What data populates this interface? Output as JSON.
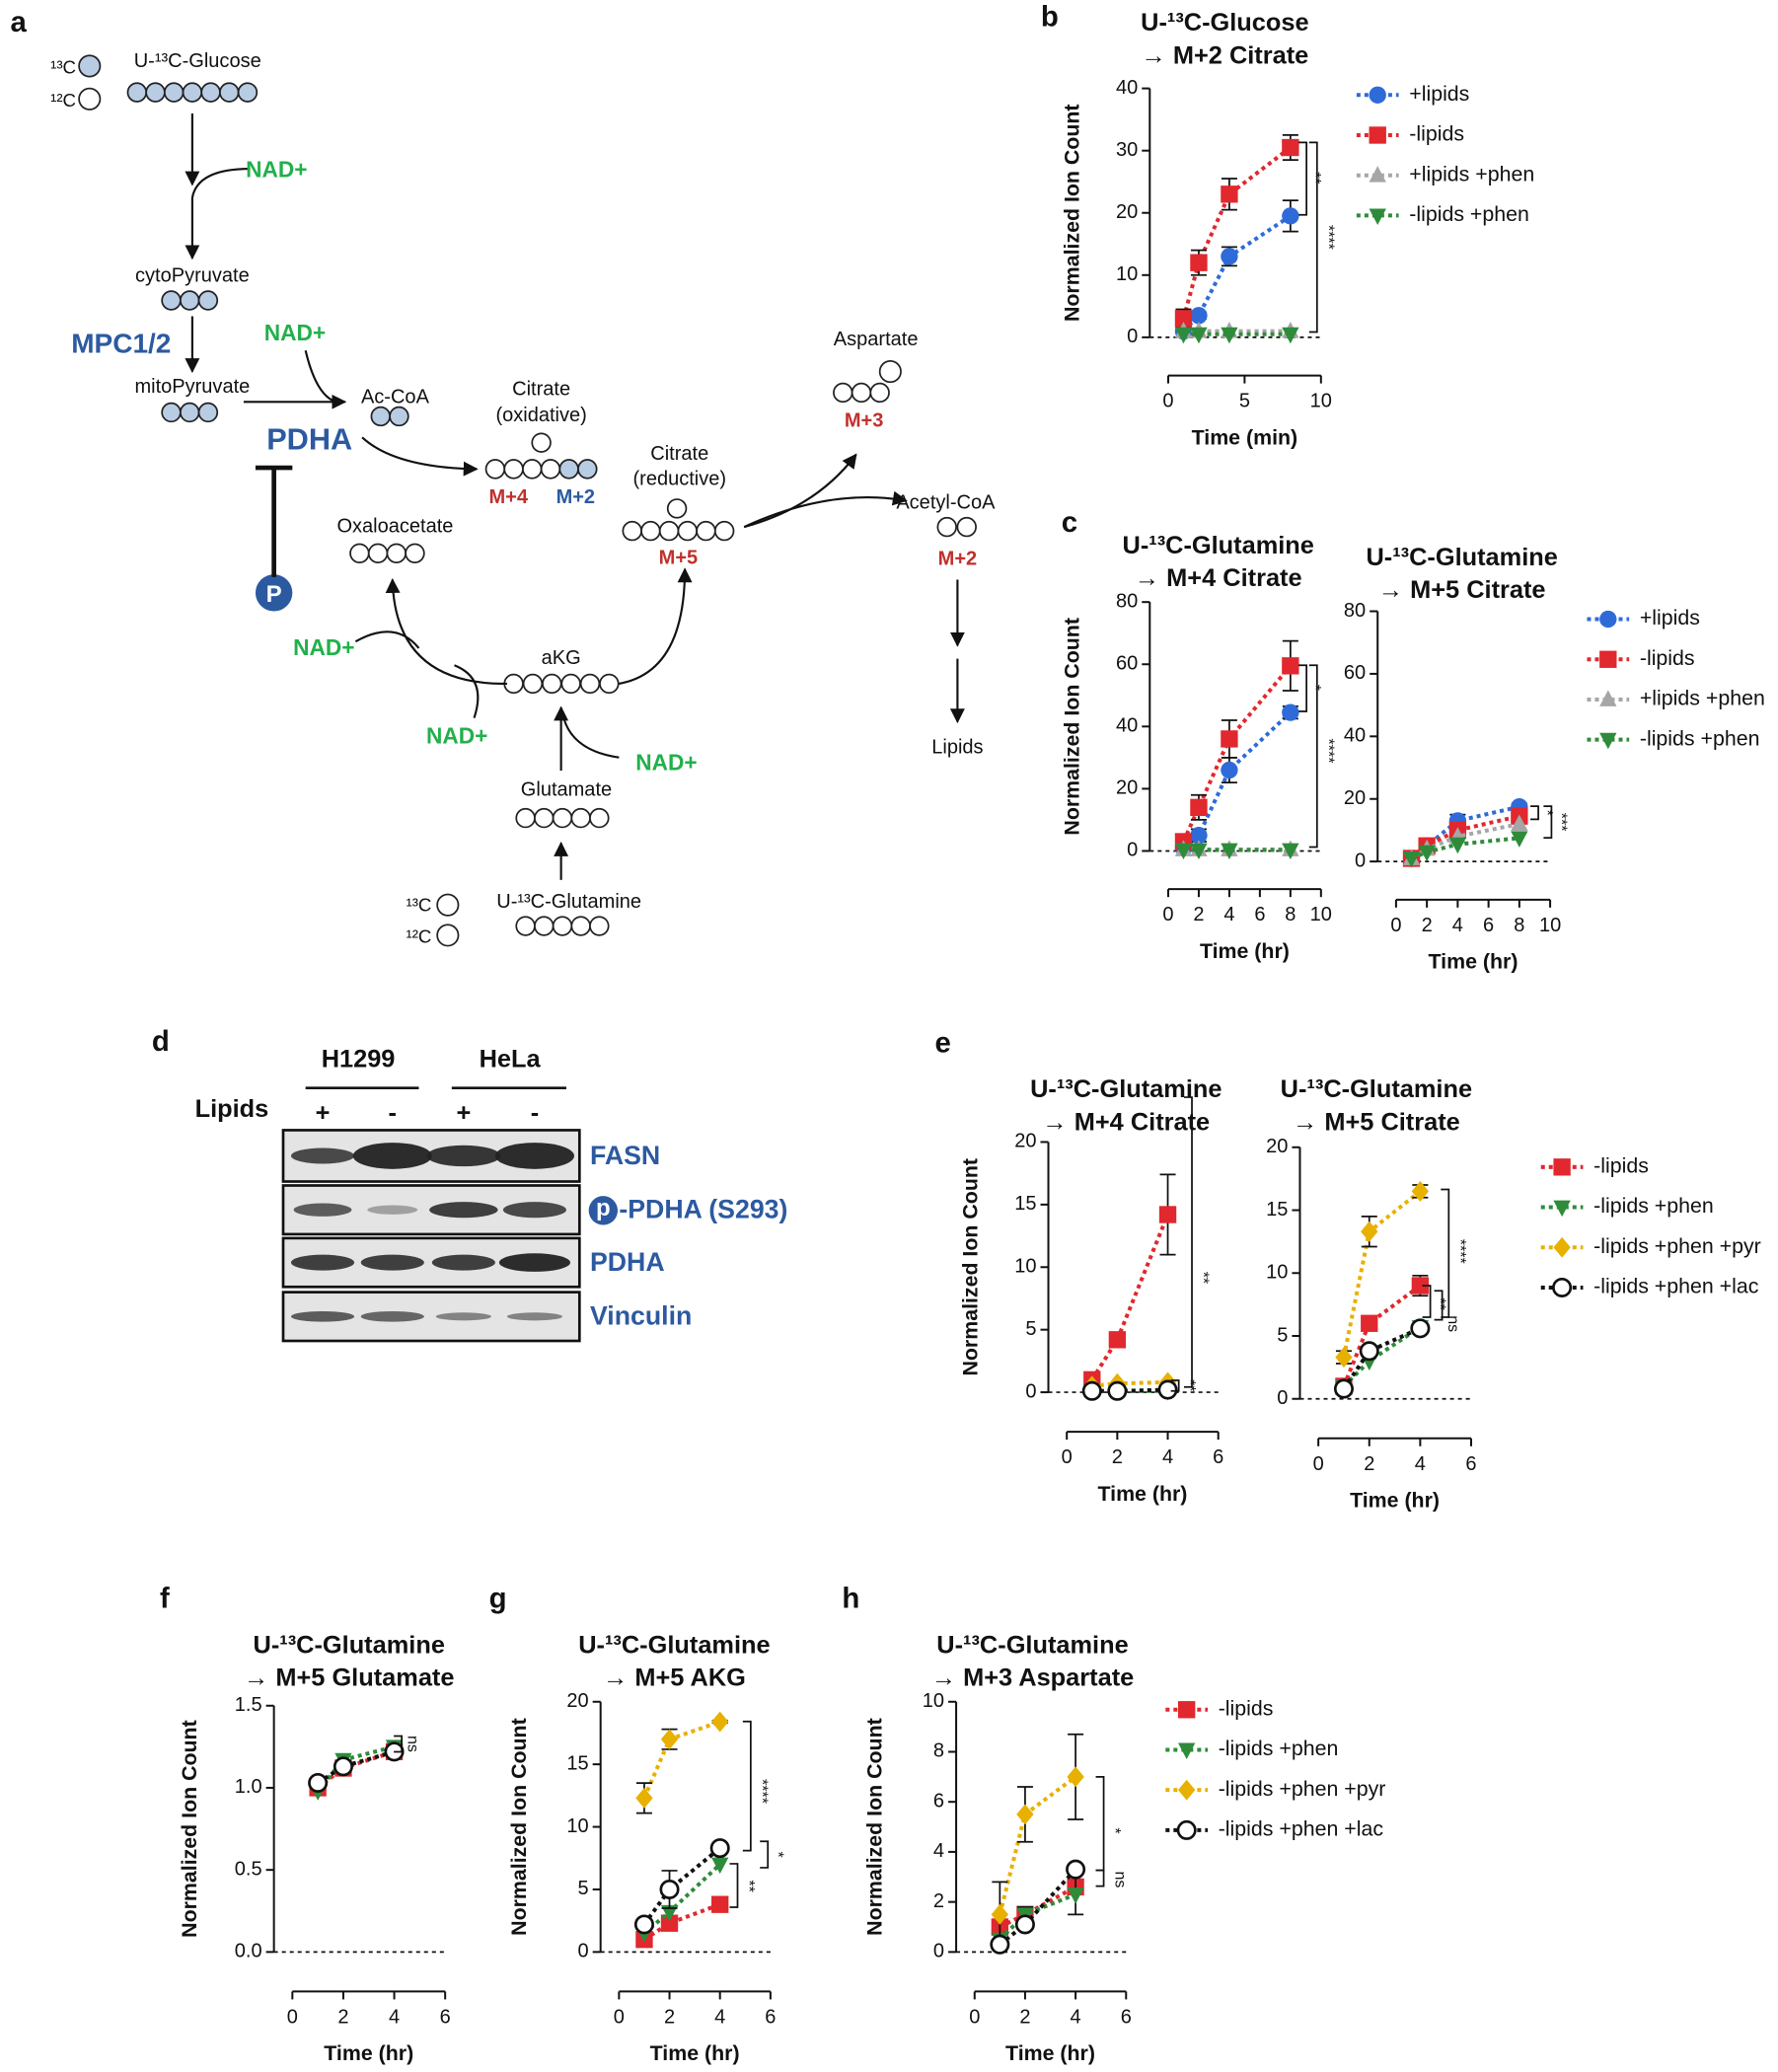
{
  "diagram": {
    "panel": "a",
    "texts": [
      "¹³C",
      "¹²C",
      "U-¹³C-Glucose",
      "NAD+",
      "cytoPyruvate",
      "MPC1/2",
      "mitoPyruvate",
      "NAD+",
      "Ac-CoA",
      "PDHA",
      "P",
      "Citrate",
      "(oxidative)",
      "M+4",
      "M+2",
      "Oxaloacetate",
      "Citrate",
      "(reductive)",
      "M+5",
      "Aspartate",
      "M+3",
      "Acetyl-CoA",
      "M+2",
      "Lipids",
      "NAD+",
      "aKG",
      "NAD+",
      "NAD+",
      "Glutamate",
      "U-¹³C-Glutamine",
      "¹³C",
      "¹²C"
    ]
  },
  "blot": {
    "panel": "d",
    "cell_lines": [
      "H1299",
      "HeLa"
    ],
    "row_label": "Lipids",
    "conditions": [
      "+",
      "-",
      "+",
      "-"
    ],
    "phospho_badge": "p",
    "proteins": [
      "FASN",
      "-PDHA (S293)",
      "PDHA",
      "Vinculin"
    ]
  },
  "chart_data": [
    {
      "type": "line",
      "panel": "b",
      "title": "U-¹³C-Glucose",
      "subtitle": "→ M+2 Citrate",
      "y_label": "Normalized Ion Count",
      "x_label": "Time (min)",
      "x": [
        1,
        2,
        4,
        8
      ],
      "xlim": [
        0,
        10
      ],
      "xticks": [
        0,
        5,
        10
      ],
      "ylim": [
        0,
        40
      ],
      "yticks": [
        0,
        10,
        20,
        30,
        40
      ],
      "legend": "right",
      "annotations": [
        "**",
        "****"
      ],
      "series": [
        {
          "name": "+lipids",
          "color": "#2f6bd8",
          "marker": "circle",
          "values": [
            1,
            3.5,
            13,
            19.5
          ],
          "errors": [
            0.5,
            0.5,
            1.5,
            2.5
          ]
        },
        {
          "name": "-lipids",
          "color": "#e0282e",
          "marker": "square",
          "values": [
            3,
            12,
            23,
            30.5
          ],
          "errors": [
            1.5,
            2,
            2.5,
            2
          ]
        },
        {
          "name": "+lipids +phen",
          "color": "#a6a6a6",
          "marker": "triangle-up",
          "values": [
            1,
            1,
            1,
            1
          ]
        },
        {
          "name": "-lipids +phen",
          "color": "#2e8b3a",
          "marker": "triangle-down",
          "values": [
            0.5,
            0.5,
            0.5,
            0.5
          ]
        }
      ]
    },
    {
      "type": "line",
      "panel": "c",
      "title": "U-¹³C-Glutamine",
      "subtitle": "→ M+4 Citrate",
      "y_label": "Normalized Ion Count",
      "x_label": "Time (hr)",
      "x": [
        1,
        2,
        4,
        8
      ],
      "xlim": [
        0,
        10
      ],
      "xticks": [
        0,
        2,
        4,
        6,
        8,
        10
      ],
      "ylim": [
        0,
        80
      ],
      "yticks": [
        0,
        20,
        40,
        60,
        80
      ],
      "annotations": [
        "*",
        "****"
      ],
      "series": [
        {
          "color": "#2f6bd8",
          "marker": "circle",
          "values": [
            1,
            5,
            26,
            44.5
          ],
          "errors": [
            1,
            2,
            4,
            2
          ]
        },
        {
          "color": "#e0282e",
          "marker": "square",
          "values": [
            3,
            14,
            36,
            59.5
          ],
          "errors": [
            1,
            4,
            6,
            8
          ]
        },
        {
          "color": "#a6a6a6",
          "marker": "triangle-up",
          "values": [
            0.5,
            0.5,
            0.5,
            0.5
          ]
        },
        {
          "color": "#2e8b3a",
          "marker": "triangle-down",
          "values": [
            0.3,
            0.3,
            0.3,
            0.3
          ]
        }
      ]
    },
    {
      "type": "line",
      "title": "U-¹³C-Glutamine",
      "subtitle": "→ M+5 Citrate",
      "x_label": "Time (hr)",
      "x": [
        1,
        2,
        4,
        8
      ],
      "xlim": [
        0,
        10
      ],
      "xticks": [
        0,
        2,
        4,
        6,
        8,
        10
      ],
      "ylim": [
        0,
        80
      ],
      "yticks": [
        0,
        20,
        40,
        60,
        80
      ],
      "legend": "right",
      "annotations": [
        "*",
        "***"
      ],
      "series": [
        {
          "name": "+lipids",
          "color": "#2f6bd8",
          "marker": "circle",
          "values": [
            1,
            5,
            13,
            17.5
          ],
          "errors": [
            0.5,
            1,
            2,
            1
          ]
        },
        {
          "name": "-lipids",
          "color": "#e0282e",
          "marker": "square",
          "values": [
            1,
            5,
            10,
            14.5
          ],
          "errors": [
            0.5,
            1,
            2,
            1.5
          ]
        },
        {
          "name": "+lipids +phen",
          "color": "#a6a6a6",
          "marker": "triangle-up",
          "values": [
            1,
            4,
            8,
            12
          ]
        },
        {
          "name": "-lipids +phen",
          "color": "#2e8b3a",
          "marker": "triangle-down",
          "values": [
            1,
            3,
            5.5,
            7.5
          ]
        }
      ]
    },
    {
      "type": "line",
      "panel": "e",
      "title": "U-¹³C-Glutamine",
      "subtitle": "→ M+4 Citrate",
      "y_label": "Normalized Ion Count",
      "x_label": "Time (hr)",
      "x": [
        1,
        2,
        4
      ],
      "xlim": [
        0,
        6
      ],
      "xticks": [
        0,
        2,
        4,
        6
      ],
      "ylim": [
        0,
        20
      ],
      "yticks": [
        0,
        5,
        10,
        15,
        20
      ],
      "annotations": [
        "**",
        "**"
      ],
      "series": [
        {
          "color": "#e0282e",
          "marker": "square",
          "values": [
            1,
            4.2,
            14.2
          ],
          "errors": [
            0.3,
            0.3,
            3.2
          ]
        },
        {
          "color": "#2e8b3a",
          "marker": "triangle-down",
          "values": [
            0.1,
            0.1,
            0.1
          ]
        },
        {
          "color": "#e8b000",
          "marker": "diamond",
          "values": [
            0.5,
            0.7,
            0.8
          ]
        },
        {
          "color": "#111111",
          "marker": "circle-open",
          "values": [
            0.1,
            0.1,
            0.2
          ]
        }
      ]
    },
    {
      "type": "line",
      "title": "U-¹³C-Glutamine",
      "subtitle": "→ M+5 Citrate",
      "x_label": "Time (hr)",
      "x": [
        1,
        2,
        4
      ],
      "xlim": [
        0,
        6
      ],
      "xticks": [
        0,
        2,
        4,
        6
      ],
      "ylim": [
        0,
        20
      ],
      "yticks": [
        0,
        5,
        10,
        15,
        20
      ],
      "legend": "right",
      "annotations": [
        "****",
        "**",
        "ns"
      ],
      "series": [
        {
          "name": "-lipids",
          "color": "#e0282e",
          "marker": "square",
          "values": [
            1,
            6,
            9
          ],
          "errors": [
            0.3,
            0.5,
            0.8
          ]
        },
        {
          "name": "-lipids +phen",
          "color": "#2e8b3a",
          "marker": "triangle-down",
          "values": [
            1,
            3,
            5.7
          ]
        },
        {
          "name": "-lipids +phen +pyr",
          "color": "#e8b000",
          "marker": "diamond",
          "values": [
            3.3,
            13.3,
            16.5
          ],
          "errors": [
            0.5,
            1.2,
            0.5
          ]
        },
        {
          "name": "-lipids +phen +lac",
          "color": "#111111",
          "marker": "circle-open",
          "values": [
            0.8,
            3.8,
            5.6
          ]
        }
      ]
    },
    {
      "type": "line",
      "panel": "f",
      "title": "U-¹³C-Glutamine",
      "subtitle": "→ M+5 Glutamate",
      "y_label": "Normalized Ion Count",
      "x_label": "Time (hr)",
      "x": [
        1,
        2,
        4
      ],
      "xlim": [
        0,
        6
      ],
      "xticks": [
        0,
        2,
        4,
        6
      ],
      "ylim": [
        0,
        1.5
      ],
      "yticks": [
        {
          "value": 0,
          "label": "0.0"
        },
        {
          "value": 0.5,
          "label": "0.5"
        },
        {
          "value": 1,
          "label": "1.0"
        },
        {
          "value": 1.5,
          "label": "1.5"
        }
      ],
      "annotations": [
        "ns"
      ],
      "series": [
        {
          "color": "#e0282e",
          "marker": "square",
          "values": [
            1,
            1.12,
            1.22
          ]
        },
        {
          "color": "#2e8b3a",
          "marker": "triangle-down",
          "values": [
            0.98,
            1.17,
            1.25
          ]
        },
        {
          "color": "#111111",
          "marker": "circle-open",
          "values": [
            1.03,
            1.13,
            1.22
          ]
        }
      ]
    },
    {
      "type": "line",
      "panel": "g",
      "title": "U-¹³C-Glutamine",
      "subtitle": "→ M+5 AKG",
      "y_label": "Normalized Ion Count",
      "x_label": "Time (hr)",
      "x": [
        1,
        2,
        4
      ],
      "xlim": [
        0,
        6
      ],
      "xticks": [
        0,
        2,
        4,
        6
      ],
      "ylim": [
        0,
        20
      ],
      "yticks": [
        0,
        5,
        10,
        15,
        20
      ],
      "annotations": [
        "****",
        "*",
        "**"
      ],
      "series": [
        {
          "color": "#e0282e",
          "marker": "square",
          "values": [
            1,
            2.3,
            3.8
          ],
          "errors": [
            0.2,
            0.3,
            0.5
          ]
        },
        {
          "color": "#2e8b3a",
          "marker": "triangle-down",
          "values": [
            1.5,
            3.2,
            7
          ]
        },
        {
          "color": "#e8b000",
          "marker": "diamond",
          "values": [
            12.3,
            17,
            18.4
          ],
          "errors": [
            1.2,
            0.8,
            0.1
          ]
        },
        {
          "color": "#111111",
          "marker": "circle-open",
          "values": [
            2.2,
            5,
            8.3
          ],
          "errors": [
            0.3,
            1.5,
            0.3
          ]
        }
      ]
    },
    {
      "type": "line",
      "panel": "h",
      "title": "U-¹³C-Glutamine",
      "subtitle": "→ M+3 Aspartate",
      "y_label": "Normalized Ion Count",
      "x_label": "Time (hr)",
      "x": [
        1,
        2,
        4
      ],
      "xlim": [
        0,
        6
      ],
      "xticks": [
        0,
        2,
        4,
        6
      ],
      "ylim": [
        0,
        10
      ],
      "yticks": [
        0,
        2,
        4,
        6,
        8,
        10
      ],
      "legend": "right",
      "annotations": [
        "*",
        "ns"
      ],
      "series": [
        {
          "name": "-lipids",
          "color": "#e0282e",
          "marker": "square",
          "values": [
            1,
            1.5,
            2.6
          ]
        },
        {
          "name": "-lipids +phen",
          "color": "#2e8b3a",
          "marker": "triangle-down",
          "values": [
            0.5,
            1.5,
            2.3
          ],
          "errors": [
            0.2,
            0.3,
            0.8
          ]
        },
        {
          "name": "-lipids +phen +pyr",
          "color": "#e8b000",
          "marker": "diamond",
          "values": [
            1.5,
            5.5,
            7
          ],
          "errors": [
            1.3,
            1.1,
            1.7
          ]
        },
        {
          "name": "-lipids +phen +lac",
          "color": "#111111",
          "marker": "circle-open",
          "values": [
            0.3,
            1.1,
            3.3
          ]
        }
      ]
    }
  ]
}
